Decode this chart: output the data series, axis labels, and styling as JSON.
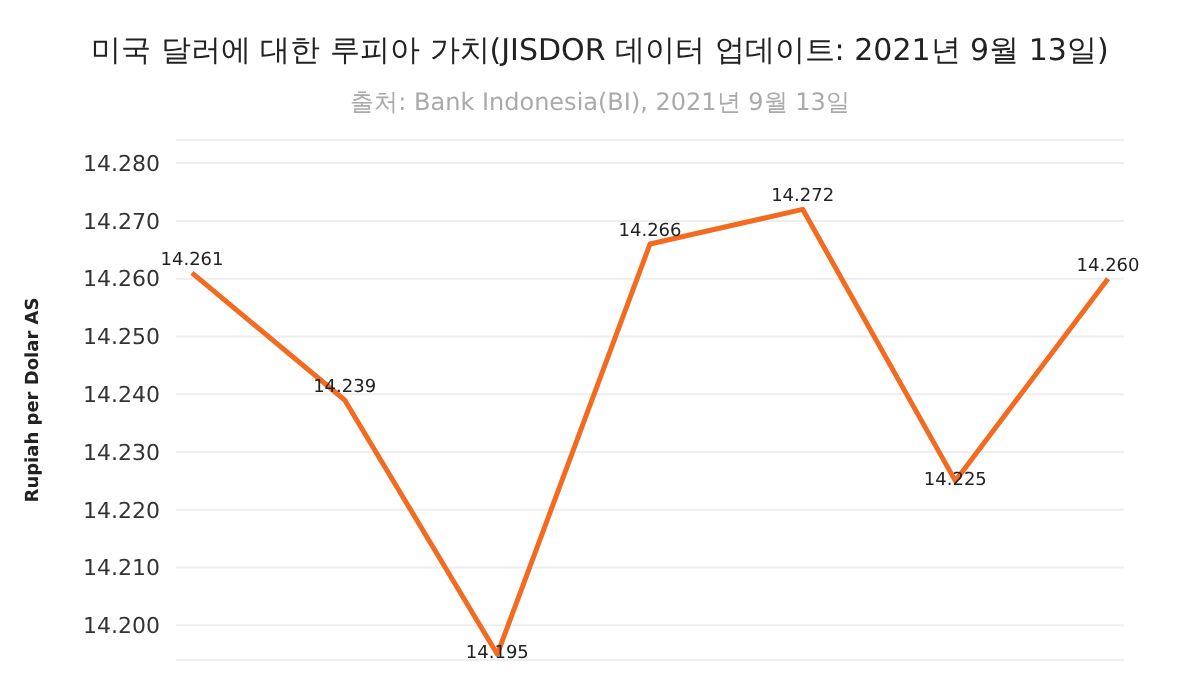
{
  "chart_data": {
    "type": "line",
    "title": "미국 달러에 대한 루피아 가치(JISDOR 데이터 업데이트: 2021년 9월 13일)",
    "subtitle": "출처: Bank Indonesia(BI), 2021년 9월 13일",
    "ylabel": "Rupiah per Dolar AS",
    "categories": [
      null,
      null,
      null,
      null,
      null,
      null,
      null
    ],
    "series": [
      {
        "color": "#f26b21",
        "values": [
          14.261,
          14.239,
          14.195,
          14.266,
          14.272,
          14.225,
          14.26
        ],
        "value_labels": [
          "14.261",
          "14.239",
          "14.195",
          "14.266",
          "14.272",
          "14.225",
          "14.260"
        ]
      }
    ],
    "ylim": [
      14.194,
      14.284
    ],
    "yticks": [
      {
        "value": 14.2,
        "label": "14.200"
      },
      {
        "value": 14.21,
        "label": "14.210"
      },
      {
        "value": 14.22,
        "label": "14.220"
      },
      {
        "value": 14.23,
        "label": "14.230"
      },
      {
        "value": 14.24,
        "label": "14.240"
      },
      {
        "value": 14.25,
        "label": "14.250"
      },
      {
        "value": 14.26,
        "label": "14.260"
      },
      {
        "value": 14.27,
        "label": "14.270"
      },
      {
        "value": 14.28,
        "label": "14.280"
      }
    ],
    "grid": "y",
    "tick_labels": "y",
    "marker": "none",
    "line_style": "solid"
  }
}
